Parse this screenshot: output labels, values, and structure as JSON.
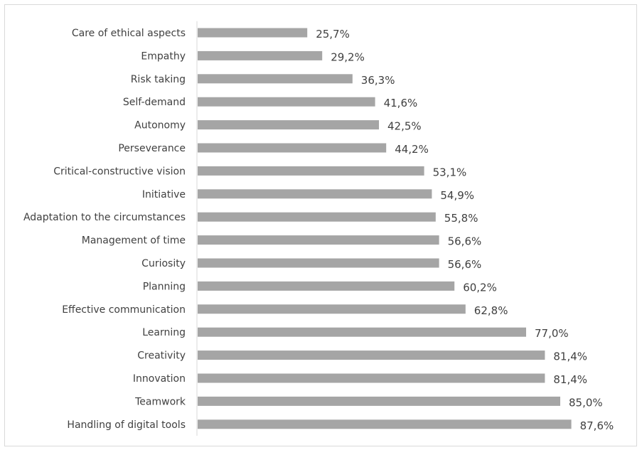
{
  "chart_data": {
    "type": "bar",
    "orientation": "horizontal",
    "categories": [
      "Care of ethical aspects",
      "Empathy",
      "Risk taking",
      "Self-demand",
      "Autonomy",
      "Perseverance",
      "Critical-constructive vision",
      "Initiative",
      "Adaptation to the circumstances",
      "Management of time",
      "Curiosity",
      "Planning",
      "Effective communication",
      "Learning",
      "Creativity",
      "Innovation",
      "Teamwork",
      "Handling of digital tools"
    ],
    "values": [
      25.7,
      29.2,
      36.3,
      41.6,
      42.5,
      44.2,
      53.1,
      54.9,
      55.8,
      56.6,
      56.6,
      60.2,
      62.8,
      77.0,
      81.4,
      81.4,
      85.0,
      87.6
    ],
    "value_labels": [
      "25,7%",
      "29,2%",
      "36,3%",
      "41,6%",
      "42,5%",
      "44,2%",
      "53,1%",
      "54,9%",
      "55,8%",
      "56,6%",
      "56,6%",
      "60,2%",
      "62,8%",
      "77,0%",
      "81,4%",
      "81,4%",
      "85,0%",
      "87,6%"
    ],
    "title": "",
    "xlabel": "",
    "ylabel": "",
    "xlim": [
      0,
      100
    ],
    "grid": false,
    "legend": "none",
    "colors": {
      "bar": "#a5a5a5",
      "axis": "#d9d9d9",
      "text": "#404040",
      "frame": "#d9d9d9"
    }
  }
}
